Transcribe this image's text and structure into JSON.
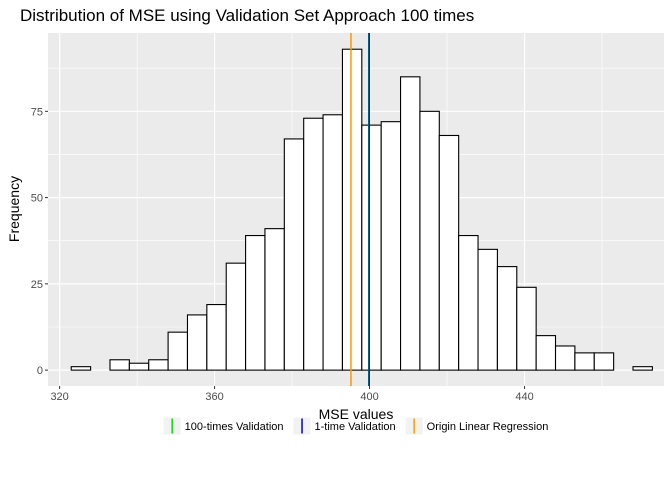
{
  "chart_data": {
    "type": "histogram",
    "title": "Distribution of MSE using Validation Set Approach 100 times",
    "xlabel": "MSE values",
    "ylabel": "Frequency",
    "xlim": [
      317,
      476
    ],
    "ylim": [
      -4.6,
      97.7
    ],
    "x_ticks": [
      320,
      360,
      400,
      440
    ],
    "y_ticks": [
      0,
      25,
      50,
      75
    ],
    "x_tick_labels": [
      "320",
      "360",
      "400",
      "440"
    ],
    "y_tick_labels": [
      "0",
      "25",
      "50",
      "75"
    ],
    "bins": {
      "start": 323,
      "width": 5,
      "counts": [
        1,
        0,
        3,
        2,
        3,
        11,
        16,
        19,
        31,
        39,
        41,
        67,
        73,
        74,
        93,
        71,
        72,
        85,
        75,
        68,
        39,
        35,
        30,
        24,
        10,
        7,
        5,
        5,
        0,
        1
      ]
    },
    "vlines": [
      {
        "name": "100-times Validation",
        "x": 399.8,
        "color": "#00E000"
      },
      {
        "name": "1-time Validation",
        "x": 399.9,
        "color": "#0000E0"
      },
      {
        "name": "Origin Linear Regression",
        "x": 395.2,
        "color": "#FF9900"
      }
    ],
    "legend": {
      "position": "bottom",
      "items": [
        "100-times Validation",
        "1-time Validation",
        "Origin Linear Regression"
      ]
    },
    "grid": true,
    "colors": {
      "panel": "#EBEBEB",
      "grid_major": "#FFFFFF",
      "bar_fill": "#FFFFFF",
      "bar_stroke": "#000000"
    }
  }
}
